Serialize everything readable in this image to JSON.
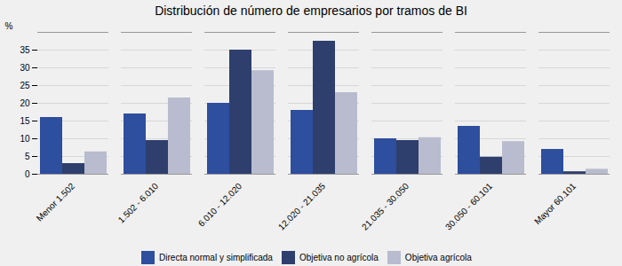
{
  "chart_data": {
    "type": "bar",
    "title": "Distribución de número de empresarios por tramos de BI",
    "categories": [
      "Menor 1.502",
      "1.502 - 6.010",
      "6.010 - 12.020",
      "12.020 - 21.035",
      "21.035 - 30.050",
      "30.050 - 60.101",
      "Mayor 60.101"
    ],
    "series": [
      {
        "name": "Directa normal y simplificada",
        "color": "#2E4E9E",
        "values": [
          16,
          17,
          20,
          18,
          10,
          13.5,
          7
        ]
      },
      {
        "name": "Objetiva no agrícola",
        "color": "#2E3F6E",
        "values": [
          3,
          9.5,
          35,
          37.5,
          9.5,
          4.8,
          0.7
        ]
      },
      {
        "name": "Objetiva agrícola",
        "color": "#B8BCCE",
        "values": [
          6.3,
          21.5,
          29.2,
          23,
          10.3,
          9.2,
          1.4
        ]
      }
    ],
    "ylabel": "%",
    "ylim": [
      0,
      40
    ],
    "yticks": [
      0,
      5,
      10,
      15,
      20,
      25,
      30,
      35
    ],
    "grid": true,
    "legend": "bottom"
  }
}
